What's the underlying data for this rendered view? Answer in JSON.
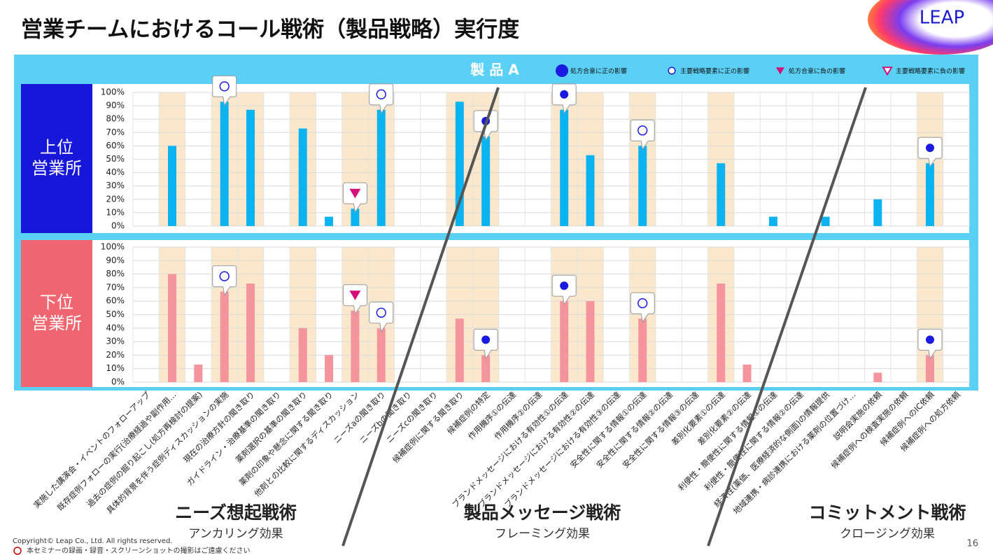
{
  "chart_data": {
    "type": "bar",
    "title": "営業チームにおけるコール戦術（製品戦略）実行度",
    "product": "製 品 A",
    "legend": [
      {
        "name": "処方合意に正の影響",
        "symbol": "filled-circle"
      },
      {
        "name": "主要戦略要素に正の影響",
        "symbol": "open-circle"
      },
      {
        "name": "処方合意に負の影響",
        "symbol": "filled-triangle"
      },
      {
        "name": "主要戦略要素に負の影響",
        "symbol": "open-triangle"
      }
    ],
    "categories": [
      "実施した講演会・イベントのフォローアップ",
      "既存症例フォローの実行(治療経過や副作用…",
      "過去の症例の掘り起こし(処方再検討の提案)",
      "具体的背景を伴う症例ディスカッションの実施",
      "現在の治療方針の聞き取り",
      "ガイドライン・治療基準の聞き取り",
      "薬剤選択の基準の聞き取り",
      "薬剤の印象や懸念に関する聞き取り",
      "他剤との比較に関するディスカッション",
      "ニーズaの聞き取り",
      "ニーズbの聞き取り",
      "ニーズcの聞き取り",
      "候補症例に関する聞き取り",
      "候補症例の特定",
      "作用機序①の伝達",
      "作用機序②の伝達",
      "ブランドメッセージにおける有効性①の伝達",
      "ブランドメッセージにおける有効性②の伝達",
      "ブランドメッセージにおける有効性③の伝達",
      "安全性に関する情報①の伝達",
      "安全性に関する情報②の伝達",
      "安全性に関する情報③の伝達",
      "差別化要素①の伝達",
      "差別化要素②の伝達",
      "利便性・簡便性に関する情報①の伝達",
      "利便性・簡便性に関する情報②の伝達",
      "経済性(薬価、医療経済的な側面)の情報提供",
      "地域連携・病診連携における薬剤の位置づけ…",
      "説明会実施の依頼",
      "候補症例への検査実施の依頼",
      "候補症例へのIC依頼",
      "候補症例への処方依頼"
    ],
    "highlight": [
      false,
      true,
      false,
      true,
      true,
      false,
      true,
      false,
      true,
      true,
      false,
      false,
      true,
      true,
      false,
      false,
      true,
      true,
      false,
      true,
      false,
      false,
      true,
      false,
      false,
      false,
      false,
      false,
      false,
      false,
      true,
      false
    ],
    "series": [
      {
        "name": "上位\n営業所",
        "color": "#0bb4f0",
        "label_color": "#1717d9",
        "values": [
          null,
          60,
          null,
          93,
          87,
          null,
          73,
          7,
          13,
          87,
          null,
          null,
          93,
          67,
          null,
          null,
          87,
          53,
          null,
          60,
          null,
          null,
          47,
          null,
          7,
          null,
          7,
          null,
          20,
          null,
          47,
          null
        ],
        "markers": [
          null,
          null,
          null,
          "open-circle",
          null,
          null,
          null,
          null,
          "filled-triangle",
          "open-circle",
          null,
          null,
          null,
          "filled-circle",
          null,
          null,
          "filled-circle",
          null,
          null,
          "open-circle",
          null,
          null,
          null,
          null,
          null,
          null,
          null,
          null,
          null,
          null,
          "filled-circle",
          null
        ]
      },
      {
        "name": "下位\n営業所",
        "color": "#f4959d",
        "label_color": "#ef6670",
        "values": [
          null,
          80,
          13,
          67,
          73,
          null,
          40,
          20,
          53,
          40,
          null,
          null,
          47,
          20,
          null,
          null,
          60,
          60,
          null,
          47,
          null,
          null,
          73,
          13,
          null,
          null,
          null,
          null,
          7,
          null,
          20,
          null
        ],
        "markers": [
          null,
          null,
          null,
          "open-circle",
          null,
          null,
          null,
          null,
          "filled-triangle",
          "open-circle",
          null,
          null,
          null,
          "filled-circle",
          null,
          null,
          "filled-circle",
          null,
          null,
          "open-circle",
          null,
          null,
          null,
          null,
          null,
          null,
          null,
          null,
          null,
          null,
          "filled-circle",
          null
        ]
      }
    ],
    "ylim": [
      0,
      100
    ],
    "yticks": [
      {
        "value": 0,
        "label": "0%"
      },
      {
        "value": 10,
        "label": "10%"
      },
      {
        "value": 20,
        "label": "20%"
      },
      {
        "value": 30,
        "label": "30%"
      },
      {
        "value": 40,
        "label": "40%"
      },
      {
        "value": 50,
        "label": "50%"
      },
      {
        "value": 60,
        "label": "60%"
      },
      {
        "value": 70,
        "label": "70%"
      },
      {
        "value": 80,
        "label": "80%"
      },
      {
        "value": 90,
        "label": "90%"
      },
      {
        "value": 100,
        "label": "100%"
      }
    ],
    "grid": true,
    "groups": [
      {
        "title": "ニーズ想起戦術",
        "subtitle": "アンカリング効果"
      },
      {
        "title": "製品メッセージ戦術",
        "subtitle": "フレーミング効果"
      },
      {
        "title": "コミットメント戦術",
        "subtitle": "クロージング効果"
      }
    ]
  },
  "logo": "LEAP",
  "copyright": "Copyright© Leap Co., Ltd.  All rights reserved.",
  "notice": "本セミナーの録画・録音・スクリーンショットの撮影はご遠慮ください",
  "page_number": "16"
}
